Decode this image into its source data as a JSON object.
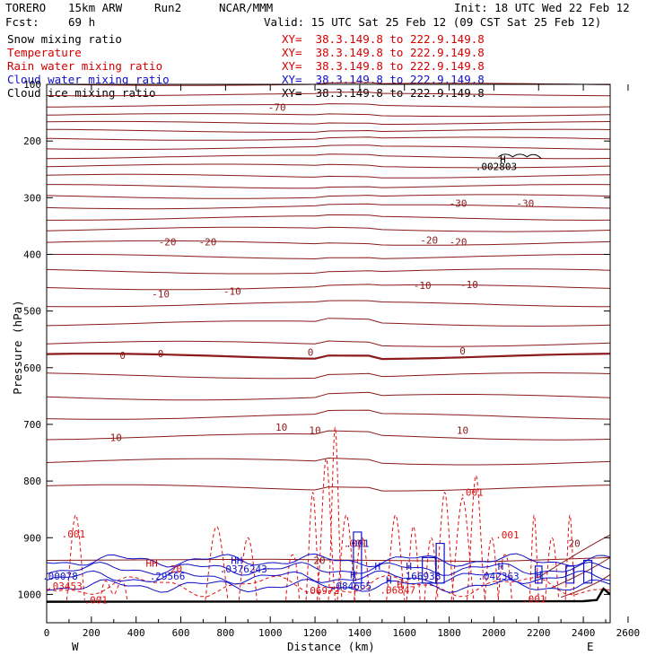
{
  "header": {
    "model": "TORERO",
    "grid": "15km ARW",
    "run": "Run2",
    "org": "NCAR/MMM",
    "init": "Init: 18 UTC Wed 22 Feb 12",
    "fcst_label": "Fcst:",
    "fcst_value": "69 h",
    "valid": "Valid: 15 UTC Sat 25 Feb 12 (09 CST Sat 25 Feb 12)"
  },
  "legend": [
    {
      "field": "Snow mixing ratio",
      "xy": "XY=  38.3.149.8 to 222.9.149.8",
      "color": "#000000"
    },
    {
      "field": "Temperature",
      "xy": "XY=  38.3.149.8 to 222.9.149.8",
      "color": "#d40000"
    },
    {
      "field": "Rain water mixing ratio",
      "xy": "XY=  38.3.149.8 to 222.9.149.8",
      "color": "#d40000"
    },
    {
      "field": "Cloud water mixing ratio",
      "xy": "XY=  38.3.149.8 to 222.9.149.8",
      "color": "#1010c8"
    },
    {
      "field": "Cloud ice mixing ratio",
      "xy": "XY=  38.3.149.8 to 222.9.149.8",
      "color": "#000000"
    }
  ],
  "chart_data": {
    "type": "contour-cross-section",
    "xlabel": "Distance (km)",
    "ylabel": "Pressure (hPa)",
    "xlim": [
      0,
      2520
    ],
    "ylim": [
      1050,
      100
    ],
    "xticks": [
      0,
      200,
      400,
      600,
      800,
      1000,
      1200,
      1400,
      1600,
      1800,
      2000,
      2200,
      2400,
      2600
    ],
    "yticks": [
      100,
      200,
      300,
      400,
      500,
      600,
      700,
      800,
      900,
      1000
    ],
    "west_label": "W",
    "east_label": "E",
    "temperature_labels": [
      {
        "text": "-70",
        "x": 1030,
        "p": 140
      },
      {
        "text": "-30",
        "x": 1840,
        "p": 310
      },
      {
        "text": "-30",
        "x": 2140,
        "p": 310
      },
      {
        "text": "-20",
        "x": 540,
        "p": 378
      },
      {
        "text": "-20",
        "x": 720,
        "p": 378
      },
      {
        "text": "-20",
        "x": 1710,
        "p": 375
      },
      {
        "text": "-20",
        "x": 1840,
        "p": 378
      },
      {
        "text": "-10",
        "x": 510,
        "p": 470
      },
      {
        "text": "-10",
        "x": 830,
        "p": 465
      },
      {
        "text": "-10",
        "x": 1680,
        "p": 455
      },
      {
        "text": "-10",
        "x": 1890,
        "p": 453
      },
      {
        "text": "0",
        "x": 340,
        "p": 578
      },
      {
        "text": "0",
        "x": 510,
        "p": 575
      },
      {
        "text": "0",
        "x": 1180,
        "p": 573
      },
      {
        "text": "0",
        "x": 1860,
        "p": 570
      },
      {
        "text": "10",
        "x": 1050,
        "p": 705
      },
      {
        "text": "10",
        "x": 1200,
        "p": 710
      },
      {
        "text": "10",
        "x": 1860,
        "p": 710
      },
      {
        "text": "10",
        "x": 310,
        "p": 723
      },
      {
        "text": "20",
        "x": 2360,
        "p": 910
      },
      {
        "text": "20",
        "x": 1220,
        "p": 940
      }
    ],
    "rain_labels": [
      {
        "text": ".001",
        "x": 120,
        "p": 893
      },
      {
        "text": ".03453",
        "x": 80,
        "p": 985
      },
      {
        "text": ".001",
        "x": 220,
        "p": 1010
      },
      {
        "text": ".001",
        "x": 1380,
        "p": 910
      },
      {
        "text": ".001",
        "x": 1900,
        "p": 820
      },
      {
        "text": ".001",
        "x": 2060,
        "p": 895
      },
      {
        "text": ".001",
        "x": 2180,
        "p": 1008
      },
      {
        "text": ".06972",
        "x": 1230,
        "p": 993
      },
      {
        "text": ".06847",
        "x": 1570,
        "p": 992
      },
      {
        "text": "20",
        "x": 580,
        "p": 955
      }
    ],
    "cloudwater_labels": [
      {
        "text": ".00078",
        "x": 60,
        "p": 968
      },
      {
        "text": ".29566",
        "x": 540,
        "p": 968
      },
      {
        "text": ".0376243",
        "x": 880,
        "p": 955
      },
      {
        "text": ".001",
        "x": 1390,
        "p": 910
      },
      {
        "text": ".084665",
        "x": 1360,
        "p": 985
      },
      {
        "text": ".166938",
        "x": 1670,
        "p": 968
      },
      {
        "text": ".042363",
        "x": 2020,
        "p": 968
      }
    ],
    "snow_labels": [
      {
        "text": ".002803",
        "x": 2010,
        "p": 245
      }
    ],
    "h_markers": [
      {
        "text": "H",
        "x": 2040,
        "p": 232,
        "color": "#000000"
      },
      {
        "text": "HH",
        "x": 470,
        "p": 945,
        "color": "#d40000"
      },
      {
        "text": "HH",
        "x": 850,
        "p": 940,
        "color": "#1010c8"
      },
      {
        "text": "H",
        "x": 1370,
        "p": 965,
        "color": "#1010c8"
      },
      {
        "text": "H",
        "x": 1480,
        "p": 950,
        "color": "#1010c8"
      },
      {
        "text": "H",
        "x": 1530,
        "p": 975,
        "color": "#1010c8"
      },
      {
        "text": "H",
        "x": 1580,
        "p": 982,
        "color": "#d40000"
      },
      {
        "text": "H",
        "x": 1620,
        "p": 950,
        "color": "#1010c8"
      },
      {
        "text": "H",
        "x": 2030,
        "p": 950,
        "color": "#1010c8"
      },
      {
        "text": "H",
        "x": 2200,
        "p": 965,
        "color": "#1010c8"
      }
    ],
    "grid": false
  }
}
